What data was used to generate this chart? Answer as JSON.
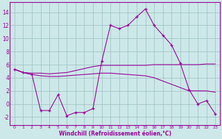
{
  "xlabel": "Windchill (Refroidissement éolien,°C)",
  "background_color": "#cce8e8",
  "line_color": "#990099",
  "x_ticks": [
    0,
    1,
    2,
    3,
    4,
    5,
    6,
    7,
    8,
    9,
    10,
    11,
    12,
    13,
    14,
    15,
    16,
    17,
    18,
    19,
    20,
    21,
    22,
    23
  ],
  "y_ticks": [
    -2,
    0,
    2,
    4,
    6,
    8,
    10,
    12,
    14
  ],
  "ylim": [
    -3.2,
    15.5
  ],
  "xlim": [
    -0.5,
    23.5
  ],
  "line_upper_y": [
    5.3,
    4.8,
    4.7,
    4.7,
    4.6,
    4.7,
    4.8,
    5.1,
    5.4,
    5.7,
    5.9,
    5.9,
    5.9,
    5.9,
    5.9,
    5.9,
    6.0,
    6.0,
    6.0,
    6.0,
    6.0,
    6.0,
    6.1,
    6.1
  ],
  "line_lower_y": [
    5.3,
    4.8,
    4.5,
    4.3,
    4.2,
    4.2,
    4.3,
    4.4,
    4.5,
    4.6,
    4.7,
    4.7,
    4.6,
    4.5,
    4.4,
    4.3,
    4.0,
    3.5,
    3.0,
    2.5,
    2.0,
    2.0,
    2.0,
    1.8
  ],
  "line_main_y": [
    5.3,
    4.8,
    4.5,
    -1.0,
    -1.0,
    1.4,
    -1.8,
    -1.3,
    -1.3,
    -0.7,
    6.5,
    12.0,
    11.5,
    12.0,
    13.3,
    14.5,
    12.0,
    10.5,
    9.0,
    6.2,
    2.2,
    0.0,
    0.5,
    -1.5
  ]
}
